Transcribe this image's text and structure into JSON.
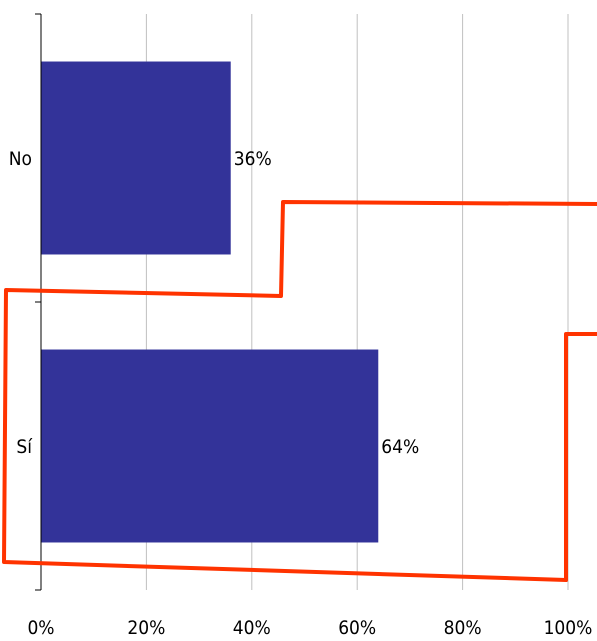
{
  "chart_data": {
    "type": "bar",
    "orientation": "horizontal",
    "categories": [
      "No",
      "Sí"
    ],
    "values": [
      36,
      64
    ],
    "data_labels": [
      "36%",
      "64%"
    ],
    "x_ticks": [
      0,
      20,
      40,
      60,
      80,
      100
    ],
    "x_tick_labels": [
      "0%",
      "20%",
      "40%",
      "60%",
      "80%",
      "100%"
    ],
    "xlim": [
      0,
      100
    ],
    "grid": "vertical",
    "bar_color": "#333399",
    "annotation_color": "#ff3300"
  }
}
